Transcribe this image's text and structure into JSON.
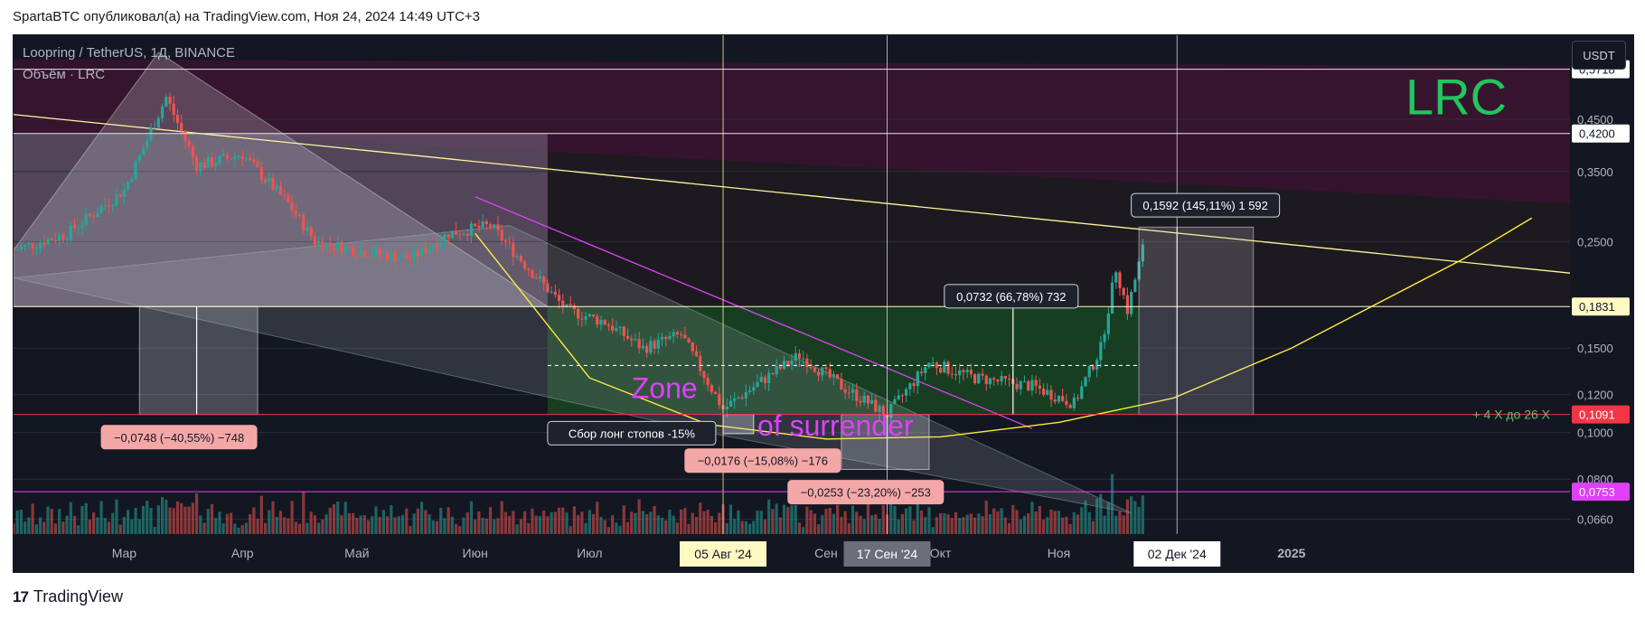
{
  "header": {
    "text": "SpartaBTC опубликовал(а) на TradingView.com, Ноя 24, 2024 14:49 UTC+3"
  },
  "legend": {
    "symbol": "Loopring / TetherUS, 1Д, BINANCE",
    "volume": "Объём · LRC"
  },
  "currency_button": "USDT",
  "footer": {
    "brand": "TradingView",
    "logo_glyph": "17"
  },
  "colors": {
    "background": "#131722",
    "up": "#26a69a",
    "down": "#ef5350",
    "accent_green": "#22c55e",
    "magenta": "#d63fd1",
    "yellow": "#ffeb3b"
  },
  "chart_data": {
    "type": "candlestick",
    "symbol": "LRC/USDT",
    "timeframe": "1D",
    "log_scale": true,
    "ylim": [
      0.062,
      0.65
    ],
    "x_range": [
      "2024-02-01",
      "2025-03-15"
    ],
    "y_ticks": [
      0.066,
      0.08,
      0.1,
      0.12,
      0.15,
      0.25,
      0.35,
      0.45
    ],
    "y_tick_labels": [
      "0,0660",
      "0,0800",
      "0,1000",
      "0,1200",
      "0,1500",
      "0,2500",
      "0,3500",
      "0,4500"
    ],
    "x_ticks": [
      {
        "date": "2024-03-01",
        "label": "Мар"
      },
      {
        "date": "2024-04-01",
        "label": "Апр"
      },
      {
        "date": "2024-05-01",
        "label": "Май"
      },
      {
        "date": "2024-06-01",
        "label": "Июн"
      },
      {
        "date": "2024-07-01",
        "label": "Июл"
      },
      {
        "date": "2024-09-01",
        "label": "Сен"
      },
      {
        "date": "2024-10-01",
        "label": "Окт"
      },
      {
        "date": "2024-11-01",
        "label": "Ноя"
      },
      {
        "date": "2025-01-01",
        "label": "2025"
      }
    ],
    "highlighted_dates": [
      {
        "date": "2024-08-05",
        "label": "05 Авг '24",
        "style": "yellow"
      },
      {
        "date": "2024-09-17",
        "label": "17 Сен '24",
        "style": "gray"
      },
      {
        "date": "2024-12-02",
        "label": "02 Дек '24",
        "style": "white"
      }
    ],
    "price_path": [
      {
        "date": "2024-02-01",
        "price": 0.24
      },
      {
        "date": "2024-02-15",
        "price": 0.26
      },
      {
        "date": "2024-03-01",
        "price": 0.32
      },
      {
        "date": "2024-03-12",
        "price": 0.5
      },
      {
        "date": "2024-03-20",
        "price": 0.36
      },
      {
        "date": "2024-04-01",
        "price": 0.38
      },
      {
        "date": "2024-04-13",
        "price": 0.3
      },
      {
        "date": "2024-04-20",
        "price": 0.25
      },
      {
        "date": "2024-05-01",
        "price": 0.24
      },
      {
        "date": "2024-05-15",
        "price": 0.23
      },
      {
        "date": "2024-05-25",
        "price": 0.26
      },
      {
        "date": "2024-06-05",
        "price": 0.27
      },
      {
        "date": "2024-06-15",
        "price": 0.22
      },
      {
        "date": "2024-06-25",
        "price": 0.18
      },
      {
        "date": "2024-07-05",
        "price": 0.17
      },
      {
        "date": "2024-07-15",
        "price": 0.15
      },
      {
        "date": "2024-07-25",
        "price": 0.16
      },
      {
        "date": "2024-08-05",
        "price": 0.112
      },
      {
        "date": "2024-08-15",
        "price": 0.128
      },
      {
        "date": "2024-08-25",
        "price": 0.145
      },
      {
        "date": "2024-09-05",
        "price": 0.125
      },
      {
        "date": "2024-09-17",
        "price": 0.109
      },
      {
        "date": "2024-09-28",
        "price": 0.14
      },
      {
        "date": "2024-10-10",
        "price": 0.13
      },
      {
        "date": "2024-10-25",
        "price": 0.125
      },
      {
        "date": "2024-11-05",
        "price": 0.115
      },
      {
        "date": "2024-11-12",
        "price": 0.15
      },
      {
        "date": "2024-11-16",
        "price": 0.22
      },
      {
        "date": "2024-11-19",
        "price": 0.18
      },
      {
        "date": "2024-11-24",
        "price": 0.26
      }
    ],
    "horizontal_levels": [
      {
        "price": 0.5718,
        "label": "0,5718",
        "badge_bg": "#ffffff",
        "badge_fg": "#131722",
        "line": "#e6e6e6"
      },
      {
        "price": 0.42,
        "label": "0,4200",
        "badge_bg": "#ffffff",
        "badge_fg": "#131722",
        "line": "#e6e6e6"
      },
      {
        "price": 0.1831,
        "label": "0,1831",
        "badge_bg": "#fff9c4",
        "badge_fg": "#131722",
        "line": "#fff9c4"
      },
      {
        "price": 0.1091,
        "label": "0,1091",
        "badge_bg": "#f23645",
        "badge_fg": "#ffffff",
        "line": "#f23645"
      },
      {
        "price": 0.0753,
        "label": "0,0753",
        "badge_bg": "#e040fb",
        "badge_fg": "#ffffff",
        "line": "#e040fb"
      }
    ],
    "annotations": {
      "title": "LRC",
      "zone_line1": "Zone",
      "zone_line2": "of surrender",
      "target_note": "+ 4 X до 26 X",
      "stop_hunt_note": "Сбор лонг стопов -15%",
      "measurements": [
        {
          "text": "0,1592 (145,11%) 1 592",
          "style": "dark"
        },
        {
          "text": "0,0732 (66,78%) 732",
          "style": "dark"
        },
        {
          "text": "−0,0748 (−40,55%) −748",
          "style": "red"
        },
        {
          "text": "−0,0176 (−15,08%) −176",
          "style": "red"
        },
        {
          "text": "−0,0253 (−23,20%) −253",
          "style": "red"
        }
      ]
    }
  }
}
